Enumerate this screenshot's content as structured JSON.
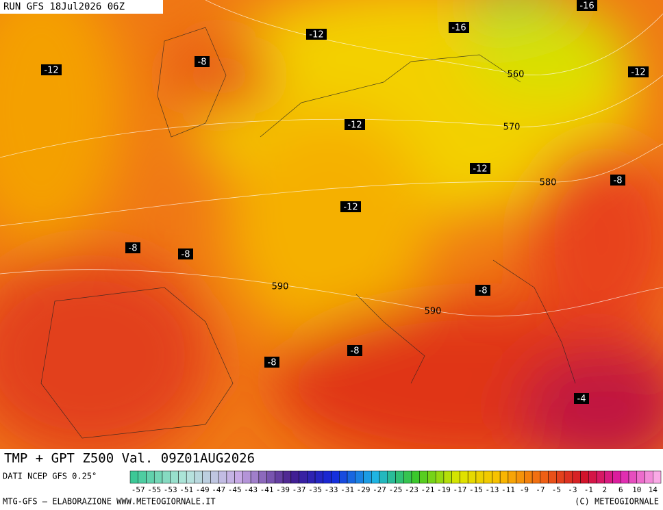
{
  "header": {
    "run": "RUN GFS 18Jul2026 06Z"
  },
  "footer": {
    "title": "TMP + GPT Z500 Val. 09Z01AUG2026",
    "source": "DATI NCEP GFS 0.25°",
    "credit": "MTG-GFS — ELABORAZIONE WWW.METEOGIORNALE.IT",
    "copyright": "(C) METEOGIORNALE"
  },
  "legend": {
    "labels": [
      -57,
      -55,
      -53,
      -51,
      -49,
      -47,
      -45,
      -43,
      -41,
      -39,
      -37,
      -35,
      -33,
      -31,
      -29,
      -27,
      -25,
      -23,
      -21,
      -19,
      -17,
      -15,
      -13,
      -11,
      -9,
      -7,
      -5,
      -3,
      -1,
      2,
      6,
      10,
      14
    ]
  },
  "contour_labels": [
    -12,
    -8,
    -12,
    -16,
    -16,
    560,
    -12,
    -12,
    570,
    -12,
    580,
    -8,
    -12,
    -8,
    -8,
    590,
    -8,
    590,
    -8,
    -8,
    -4
  ]
}
